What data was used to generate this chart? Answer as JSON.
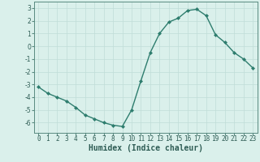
{
  "x": [
    0,
    1,
    2,
    3,
    4,
    5,
    6,
    7,
    8,
    9,
    10,
    11,
    12,
    13,
    14,
    15,
    16,
    17,
    18,
    19,
    20,
    21,
    22,
    23
  ],
  "y": [
    -3.2,
    -3.7,
    -4.0,
    -4.3,
    -4.8,
    -5.4,
    -5.7,
    -6.0,
    -6.2,
    -6.3,
    -5.0,
    -2.7,
    -0.5,
    1.0,
    1.9,
    2.2,
    2.8,
    2.9,
    2.4,
    0.9,
    0.3,
    -0.5,
    -1.0,
    -1.7
  ],
  "line_color": "#2e7d6e",
  "marker": "D",
  "marker_size": 2,
  "linewidth": 1.0,
  "xlabel": "Humidex (Indice chaleur)",
  "xlabel_fontsize": 7,
  "xlabel_fontweight": "bold",
  "xlim": [
    -0.5,
    23.5
  ],
  "ylim": [
    -6.8,
    3.5
  ],
  "yticks": [
    -6,
    -5,
    -4,
    -3,
    -2,
    -1,
    0,
    1,
    2,
    3
  ],
  "xticks": [
    0,
    1,
    2,
    3,
    4,
    5,
    6,
    7,
    8,
    9,
    10,
    11,
    12,
    13,
    14,
    15,
    16,
    17,
    18,
    19,
    20,
    21,
    22,
    23
  ],
  "grid_color": "#c0ddd7",
  "bg_color": "#daf0eb",
  "tick_fontsize": 5.5,
  "fig_bg": "#daf0eb",
  "spine_color": "#5a8a80",
  "text_color": "#2e5c54"
}
